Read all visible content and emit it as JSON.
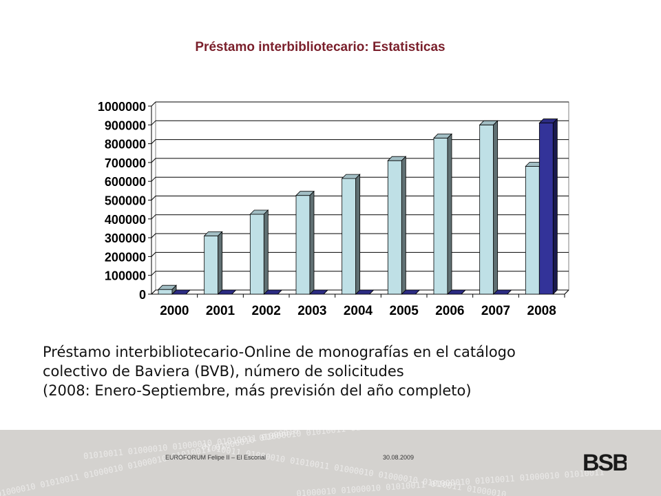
{
  "slide": {
    "title": "Préstamo interbibliotecario: Estatisticas",
    "caption_lines": [
      "Préstamo interbibliotecario-Online de monografías en el catálogo",
      "colectivo de Baviera (BVB), número de solicitudes",
      "(2008: Enero-Septiembre, más previsión del año completo)"
    ]
  },
  "chart_data": {
    "type": "bar",
    "title": "",
    "xlabel": "",
    "ylabel": "",
    "categories": [
      "2000",
      "2001",
      "2002",
      "2003",
      "2004",
      "2005",
      "2006",
      "2007",
      "2008"
    ],
    "series": [
      {
        "values": [
          25000,
          310000,
          425000,
          525000,
          615000,
          710000,
          830000,
          900000,
          680000
        ],
        "color": "#bfe0e6"
      },
      {
        "values": [
          0,
          0,
          0,
          0,
          0,
          0,
          0,
          0,
          910000
        ],
        "color": "#333399"
      }
    ],
    "ylim": [
      0,
      1000000
    ],
    "yticks": [
      0,
      100000,
      200000,
      300000,
      400000,
      500000,
      600000,
      700000,
      800000,
      900000,
      1000000
    ],
    "grid": true,
    "legend": "none"
  },
  "footer": {
    "event": "EUROFORUM Felipe II – El Escorial",
    "date": "30.08.2009",
    "logo_text": "BSB",
    "binary_lines": [
      "01010011 01000010 01000010 01010011 01000010 01010011 01000010",
      "01000010 01010011 01000010 01000010 01010011 01000010 01000010",
      "01010011 01000010 01010011 01000010 01000010 01010011 01000010",
      "01000010 01000010 01010011 01000010 01010011 01000010 01010011"
    ]
  }
}
